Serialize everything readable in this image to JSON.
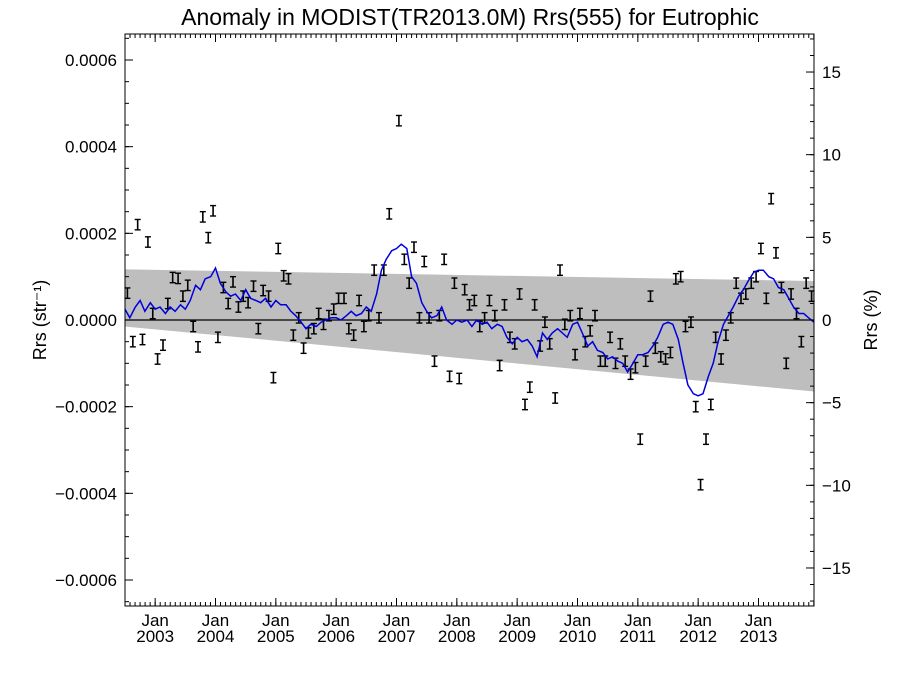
{
  "chart_data": {
    "type": "line",
    "title": "Anomaly in MODIST(TR2013.0M) Rrs(555) for Eutrophic",
    "ylabel_left": "Rrs (str⁻¹)",
    "ylabel_right": "Rrs (%)",
    "xlim": [
      2002.5,
      2013.92
    ],
    "ylim_left": [
      -0.00066,
      0.00066
    ],
    "ylim_right": [
      -17.3,
      17.3
    ],
    "left_ticks": [
      {
        "value": 0.0006,
        "label": "0.0006"
      },
      {
        "value": 0.0004,
        "label": "0.0004"
      },
      {
        "value": 0.0002,
        "label": "0.0002"
      },
      {
        "value": 0.0,
        "label": "0.0000"
      },
      {
        "value": -0.0002,
        "label": "−0.0002"
      },
      {
        "value": -0.0004,
        "label": "−0.0004"
      },
      {
        "value": -0.0006,
        "label": "−0.0006"
      }
    ],
    "right_ticks": [
      {
        "value": 15,
        "label": "15"
      },
      {
        "value": 10,
        "label": "10"
      },
      {
        "value": 5,
        "label": "5"
      },
      {
        "value": 0,
        "label": "0"
      },
      {
        "value": -5,
        "label": "−5"
      },
      {
        "value": -10,
        "label": "−10"
      },
      {
        "value": -15,
        "label": "−15"
      }
    ],
    "x_ticks": [
      {
        "value": 2003.0,
        "month": "Jan",
        "year": "2003"
      },
      {
        "value": 2004.0,
        "month": "Jan",
        "year": "2004"
      },
      {
        "value": 2005.0,
        "month": "Jan",
        "year": "2005"
      },
      {
        "value": 2006.0,
        "month": "Jan",
        "year": "2006"
      },
      {
        "value": 2007.0,
        "month": "Jan",
        "year": "2007"
      },
      {
        "value": 2008.0,
        "month": "Jan",
        "year": "2008"
      },
      {
        "value": 2009.0,
        "month": "Jan",
        "year": "2009"
      },
      {
        "value": 2010.0,
        "month": "Jan",
        "year": "2010"
      },
      {
        "value": 2011.0,
        "month": "Jan",
        "year": "2011"
      },
      {
        "value": 2012.0,
        "month": "Jan",
        "year": "2012"
      },
      {
        "value": 2013.0,
        "month": "Jan",
        "year": "2013"
      }
    ],
    "band": {
      "x": [
        2002.5,
        2013.92
      ],
      "upper": [
        0.000117,
        9e-05
      ],
      "lower": [
        -1.5e-05,
        -0.000165
      ]
    },
    "zero_line": 0.0,
    "colors": {
      "smoothed_line": "#0000dd",
      "band": "#bebebe",
      "points": "#000000"
    },
    "monthly_points": [
      [
        2002.54,
        6.2e-05
      ],
      [
        2002.63,
        -5e-05
      ],
      [
        2002.71,
        0.00022
      ],
      [
        2002.79,
        -4.5e-05
      ],
      [
        2002.88,
        0.00018
      ],
      [
        2002.96,
        1.5e-05
      ],
      [
        2003.04,
        -9e-05
      ],
      [
        2003.13,
        -5.8e-05
      ],
      [
        2003.21,
        3.8e-05
      ],
      [
        2003.29,
        9.8e-05
      ],
      [
        2003.38,
        9.6e-05
      ],
      [
        2003.46,
        5.5e-05
      ],
      [
        2003.54,
        8e-05
      ],
      [
        2003.63,
        -1.5e-05
      ],
      [
        2003.71,
        -6.2e-05
      ],
      [
        2003.79,
        0.000238
      ],
      [
        2003.88,
        0.00019
      ],
      [
        2003.96,
        0.000252
      ],
      [
        2004.04,
        -4e-05
      ],
      [
        2004.13,
        7.5e-05
      ],
      [
        2004.21,
        3.8e-05
      ],
      [
        2004.29,
        8.8e-05
      ],
      [
        2004.38,
        3e-05
      ],
      [
        2004.46,
        5.5e-05
      ],
      [
        2004.54,
        4e-05
      ],
      [
        2004.63,
        7.8e-05
      ],
      [
        2004.71,
        -2e-05
      ],
      [
        2004.79,
        6.8e-05
      ],
      [
        2004.88,
        5.5e-05
      ],
      [
        2004.96,
        -0.000133
      ],
      [
        2005.04,
        0.000165
      ],
      [
        2005.13,
        0.000102
      ],
      [
        2005.21,
        9.5e-05
      ],
      [
        2005.29,
        -3.5e-05
      ],
      [
        2005.38,
        5e-06
      ],
      [
        2005.46,
        -6.5e-05
      ],
      [
        2005.54,
        -3e-05
      ],
      [
        2005.63,
        -2e-05
      ],
      [
        2005.71,
        1.5e-05
      ],
      [
        2005.79,
        -1e-05
      ],
      [
        2005.88,
        1e-05
      ],
      [
        2005.96,
        2.5e-05
      ],
      [
        2006.04,
        5e-05
      ],
      [
        2006.13,
        5e-05
      ],
      [
        2006.21,
        -2e-05
      ],
      [
        2006.29,
        -3.5e-05
      ],
      [
        2006.38,
        4.5e-05
      ],
      [
        2006.46,
        -1.5e-05
      ],
      [
        2006.54,
        1e-05
      ],
      [
        2006.63,
        0.000115
      ],
      [
        2006.71,
        5e-06
      ],
      [
        2006.79,
        0.000115
      ],
      [
        2006.88,
        0.000245
      ],
      [
        2007.04,
        0.00046
      ],
      [
        2007.13,
        0.00014
      ],
      [
        2007.21,
        8.5e-05
      ],
      [
        2007.29,
        0.000168
      ],
      [
        2007.38,
        5e-06
      ],
      [
        2007.46,
        0.000135
      ],
      [
        2007.54,
        5e-06
      ],
      [
        2007.63,
        -9.5e-05
      ],
      [
        2007.71,
        1e-05
      ],
      [
        2007.79,
        0.00014
      ],
      [
        2007.88,
        -0.00013
      ],
      [
        2007.96,
        8.5e-05
      ],
      [
        2008.04,
        -0.000135
      ],
      [
        2008.13,
        7e-05
      ],
      [
        2008.21,
        3.5e-05
      ],
      [
        2008.29,
        4.5e-05
      ],
      [
        2008.38,
        -1.5e-05
      ],
      [
        2008.46,
        5e-06
      ],
      [
        2008.54,
        4.5e-05
      ],
      [
        2008.63,
        1e-05
      ],
      [
        2008.71,
        -0.000105
      ],
      [
        2008.79,
        3.5e-05
      ],
      [
        2008.88,
        -4e-05
      ],
      [
        2008.96,
        -5.5e-05
      ],
      [
        2009.04,
        6e-05
      ],
      [
        2009.13,
        -0.000195
      ],
      [
        2009.21,
        -0.000155
      ],
      [
        2009.29,
        3.5e-05
      ],
      [
        2009.38,
        -6e-05
      ],
      [
        2009.46,
        -5e-06
      ],
      [
        2009.54,
        -5.5e-05
      ],
      [
        2009.63,
        -0.00018
      ],
      [
        2009.71,
        0.000115
      ],
      [
        2009.79,
        -1e-05
      ],
      [
        2009.88,
        1e-05
      ],
      [
        2009.96,
        -8e-05
      ],
      [
        2010.04,
        1.5e-05
      ],
      [
        2010.13,
        -5e-05
      ],
      [
        2010.21,
        -2.5e-05
      ],
      [
        2010.29,
        1e-05
      ],
      [
        2010.38,
        -9.5e-05
      ],
      [
        2010.46,
        -9.5e-05
      ],
      [
        2010.54,
        -4e-05
      ],
      [
        2010.63,
        -0.0001
      ],
      [
        2010.71,
        -5.5e-05
      ],
      [
        2010.79,
        -9.5e-05
      ],
      [
        2010.88,
        -0.000125
      ],
      [
        2010.96,
        -0.00011
      ],
      [
        2011.04,
        -0.000275
      ],
      [
        2011.13,
        -9.5e-05
      ],
      [
        2011.21,
        5.5e-05
      ],
      [
        2011.29,
        -6.5e-05
      ],
      [
        2011.38,
        -8.5e-05
      ],
      [
        2011.46,
        -9e-05
      ],
      [
        2011.54,
        -7.5e-05
      ],
      [
        2011.63,
        9.5e-05
      ],
      [
        2011.71,
        0.0001
      ],
      [
        2011.79,
        -1.5e-05
      ],
      [
        2011.88,
        -5e-06
      ],
      [
        2011.96,
        -0.0002
      ],
      [
        2012.04,
        -0.00038
      ],
      [
        2012.13,
        -0.000275
      ],
      [
        2012.21,
        -0.000195
      ],
      [
        2012.29,
        -4e-05
      ],
      [
        2012.38,
        -9e-05
      ],
      [
        2012.46,
        -3.5e-05
      ],
      [
        2012.54,
        5e-06
      ],
      [
        2012.63,
        8.5e-05
      ],
      [
        2012.71,
        5e-05
      ],
      [
        2012.79,
        6e-05
      ],
      [
        2012.88,
        8.5e-05
      ],
      [
        2012.96,
        0.0001
      ],
      [
        2013.04,
        0.000165
      ],
      [
        2013.13,
        5e-05
      ],
      [
        2013.21,
        0.00028
      ],
      [
        2013.29,
        0.000155
      ],
      [
        2013.38,
        7.5e-05
      ],
      [
        2013.46,
        -0.0001
      ],
      [
        2013.54,
        6e-05
      ],
      [
        2013.63,
        1.5e-05
      ],
      [
        2013.71,
        -5e-05
      ],
      [
        2013.79,
        8.5e-05
      ],
      [
        2013.88,
        5.5e-05
      ]
    ],
    "error_bar_halfwidth": 1.2e-05,
    "smoothed_series": [
      [
        2002.5,
        2.5e-05
      ],
      [
        2002.58,
        5e-06
      ],
      [
        2002.67,
        3e-05
      ],
      [
        2002.75,
        4.5e-05
      ],
      [
        2002.83,
        2e-05
      ],
      [
        2002.92,
        4e-05
      ],
      [
        2003.0,
        2.5e-05
      ],
      [
        2003.08,
        3e-05
      ],
      [
        2003.17,
        1.5e-05
      ],
      [
        2003.25,
        3e-05
      ],
      [
        2003.33,
        2e-05
      ],
      [
        2003.42,
        3.5e-05
      ],
      [
        2003.5,
        2.5e-05
      ],
      [
        2003.58,
        4.5e-05
      ],
      [
        2003.67,
        8e-05
      ],
      [
        2003.75,
        7e-05
      ],
      [
        2003.83,
        9.5e-05
      ],
      [
        2003.92,
        0.0001
      ],
      [
        2004.0,
        0.00012
      ],
      [
        2004.08,
        8.5e-05
      ],
      [
        2004.17,
        6.5e-05
      ],
      [
        2004.25,
        5.5e-05
      ],
      [
        2004.33,
        6e-05
      ],
      [
        2004.42,
        4.5e-05
      ],
      [
        2004.5,
        7e-05
      ],
      [
        2004.58,
        5e-05
      ],
      [
        2004.67,
        4.5e-05
      ],
      [
        2004.75,
        4e-05
      ],
      [
        2004.83,
        5e-05
      ],
      [
        2004.92,
        3e-05
      ],
      [
        2005.0,
        4.5e-05
      ],
      [
        2005.08,
        3.5e-05
      ],
      [
        2005.17,
        3.5e-05
      ],
      [
        2005.25,
        2e-05
      ],
      [
        2005.33,
        1e-05
      ],
      [
        2005.42,
        -5e-06
      ],
      [
        2005.5,
        -2e-05
      ],
      [
        2005.58,
        -1e-05
      ],
      [
        2005.67,
        -1.5e-05
      ],
      [
        2005.75,
        -5e-06
      ],
      [
        2005.83,
        0.0
      ],
      [
        2005.92,
        5e-06
      ],
      [
        2006.0,
        5e-06
      ],
      [
        2006.08,
        0.0
      ],
      [
        2006.17,
        1e-05
      ],
      [
        2006.25,
        2e-05
      ],
      [
        2006.33,
        1e-05
      ],
      [
        2006.42,
        1.5e-05
      ],
      [
        2006.5,
        3e-05
      ],
      [
        2006.58,
        2e-05
      ],
      [
        2006.67,
        6e-05
      ],
      [
        2006.75,
        0.000115
      ],
      [
        2006.83,
        0.00014
      ],
      [
        2006.92,
        0.00016
      ],
      [
        2007.0,
        0.000165
      ],
      [
        2007.08,
        0.000175
      ],
      [
        2007.17,
        0.000165
      ],
      [
        2007.25,
        0.0001
      ],
      [
        2007.33,
        8.5e-05
      ],
      [
        2007.42,
        4e-05
      ],
      [
        2007.5,
        2e-05
      ],
      [
        2007.58,
        5e-06
      ],
      [
        2007.67,
        1e-05
      ],
      [
        2007.75,
        3e-05
      ],
      [
        2007.83,
        0.0
      ],
      [
        2007.92,
        -1e-05
      ],
      [
        2008.0,
        0.0
      ],
      [
        2008.08,
        -5e-06
      ],
      [
        2008.17,
        0.0
      ],
      [
        2008.25,
        -1.5e-05
      ],
      [
        2008.33,
        0.0
      ],
      [
        2008.42,
        -1e-05
      ],
      [
        2008.5,
        -5e-06
      ],
      [
        2008.58,
        -2e-05
      ],
      [
        2008.67,
        -1e-05
      ],
      [
        2008.75,
        -1.5e-05
      ],
      [
        2008.83,
        -4e-05
      ],
      [
        2008.92,
        -5.5e-05
      ],
      [
        2009.0,
        -4e-05
      ],
      [
        2009.08,
        -5e-05
      ],
      [
        2009.17,
        -4.5e-05
      ],
      [
        2009.25,
        -6e-05
      ],
      [
        2009.33,
        -8.5e-05
      ],
      [
        2009.42,
        -3e-05
      ],
      [
        2009.5,
        -4.5e-05
      ],
      [
        2009.58,
        -3e-05
      ],
      [
        2009.67,
        -2e-05
      ],
      [
        2009.75,
        -3e-05
      ],
      [
        2009.83,
        -4e-05
      ],
      [
        2009.92,
        -1e-05
      ],
      [
        2010.0,
        -5e-06
      ],
      [
        2010.08,
        -3e-05
      ],
      [
        2010.17,
        -6e-05
      ],
      [
        2010.25,
        -5e-05
      ],
      [
        2010.33,
        -7e-05
      ],
      [
        2010.42,
        -7.5e-05
      ],
      [
        2010.5,
        -9e-05
      ],
      [
        2010.58,
        -8.5e-05
      ],
      [
        2010.67,
        -9.5e-05
      ],
      [
        2010.75,
        -0.0001
      ],
      [
        2010.83,
        -0.00012
      ],
      [
        2010.92,
        -0.0001
      ],
      [
        2011.0,
        -8e-05
      ],
      [
        2011.08,
        -8e-05
      ],
      [
        2011.17,
        -7.5e-05
      ],
      [
        2011.25,
        -6e-05
      ],
      [
        2011.33,
        -4e-05
      ],
      [
        2011.42,
        -1e-05
      ],
      [
        2011.5,
        -5e-06
      ],
      [
        2011.58,
        -1e-05
      ],
      [
        2011.67,
        -4.5e-05
      ],
      [
        2011.75,
        -0.0001
      ],
      [
        2011.83,
        -0.00015
      ],
      [
        2011.92,
        -0.00017
      ],
      [
        2012.0,
        -0.000175
      ],
      [
        2012.08,
        -0.00017
      ],
      [
        2012.17,
        -0.00013
      ],
      [
        2012.25,
        -0.0001
      ],
      [
        2012.33,
        -5e-05
      ],
      [
        2012.42,
        -1e-05
      ],
      [
        2012.5,
        1e-05
      ],
      [
        2012.58,
        3e-05
      ],
      [
        2012.67,
        5.5e-05
      ],
      [
        2012.75,
        7e-05
      ],
      [
        2012.83,
        9e-05
      ],
      [
        2012.92,
        0.00011
      ],
      [
        2013.0,
        0.000115
      ],
      [
        2013.08,
        0.000115
      ],
      [
        2013.17,
        0.0001
      ],
      [
        2013.25,
        9.5e-05
      ],
      [
        2013.33,
        7.5e-05
      ],
      [
        2013.42,
        7e-05
      ],
      [
        2013.5,
        5e-05
      ],
      [
        2013.58,
        3e-05
      ],
      [
        2013.67,
        1.5e-05
      ],
      [
        2013.75,
        1.5e-05
      ],
      [
        2013.83,
        5e-06
      ],
      [
        2013.92,
        -5e-06
      ]
    ]
  }
}
